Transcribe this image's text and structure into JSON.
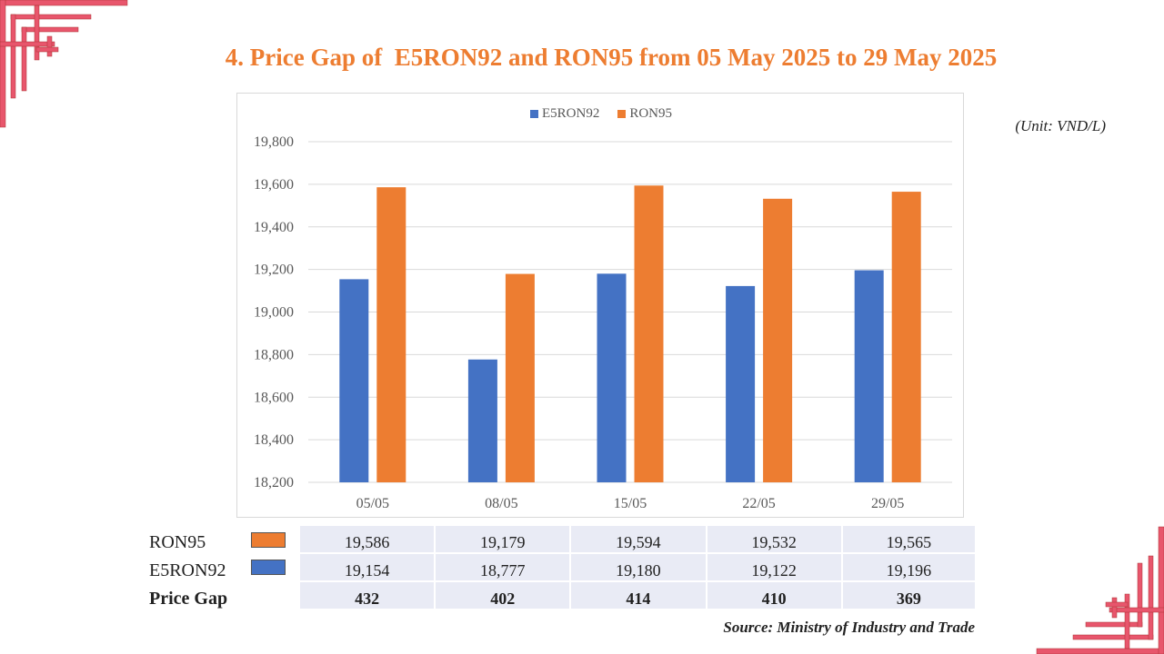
{
  "title": "4. Price Gap of  E5RON92 and RON95 from 05 May 2025 to 29 May 2025",
  "unit": "(Unit: VND/L)",
  "source": "Source: Ministry of Industry and Trade",
  "colors": {
    "e5ron92": "#4472C4",
    "ron95": "#ED7D31",
    "title": "#ED7D31",
    "decoration": "#E8566C"
  },
  "chart_data": {
    "type": "bar",
    "categories": [
      "05/05",
      "08/05",
      "15/05",
      "22/05",
      "29/05"
    ],
    "series": [
      {
        "name": "E5RON92",
        "values": [
          19154,
          18777,
          19180,
          19122,
          19196
        ]
      },
      {
        "name": "RON95",
        "values": [
          19586,
          19179,
          19594,
          19532,
          19565
        ]
      }
    ],
    "ylim": [
      18200,
      19800
    ],
    "yticks": [
      "18,200",
      "18,400",
      "18,600",
      "18,800",
      "19,000",
      "19,200",
      "19,400",
      "19,600",
      "19,800"
    ],
    "legend": "top-center",
    "grid": true
  },
  "table": {
    "rows": [
      {
        "label": "RON95",
        "values": [
          "19,586",
          "19,179",
          "19,594",
          "19,532",
          "19,565"
        ]
      },
      {
        "label": "E5RON92",
        "values": [
          "19,154",
          "18,777",
          "19,180",
          "19,122",
          "19,196"
        ]
      },
      {
        "label": "Price Gap",
        "values": [
          "432",
          "402",
          "414",
          "410",
          "369"
        ]
      }
    ]
  }
}
